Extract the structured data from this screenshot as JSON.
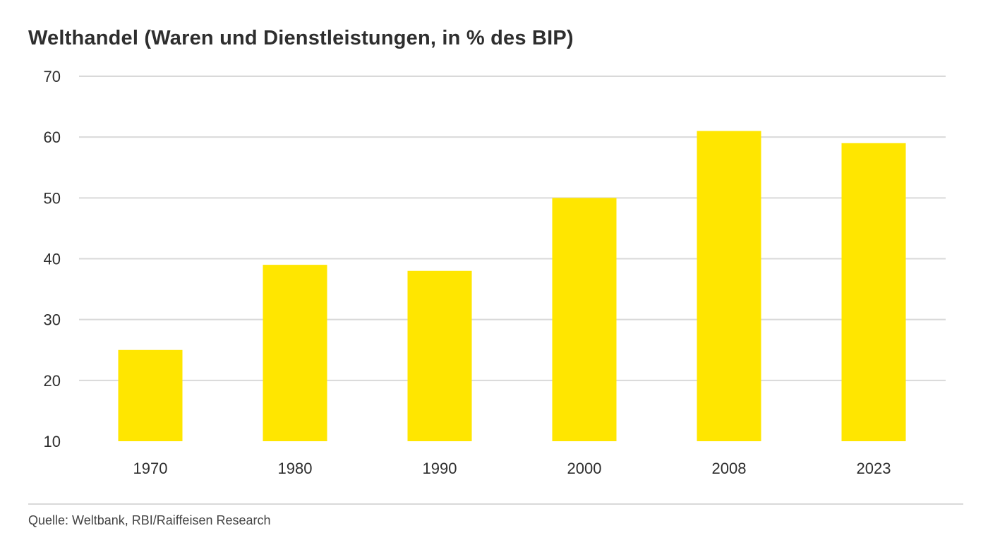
{
  "chart_data": {
    "type": "bar",
    "title": "Welthandel (Waren und Dienstleistungen, in % des BIP)",
    "categories": [
      "1970",
      "1980",
      "1990",
      "2000",
      "2008",
      "2023"
    ],
    "values": [
      25,
      39,
      38,
      50,
      61,
      59
    ],
    "yticks": [
      "10",
      "20",
      "30",
      "40",
      "50",
      "60",
      "70"
    ],
    "ylim": [
      10,
      70
    ],
    "xlabel": "",
    "ylabel": "",
    "grid": true,
    "legend": "none",
    "bar_color": "#FFE600",
    "grid_color": "#d9d9d9",
    "source": "Quelle: Weltbank, RBI/Raiffeisen Research"
  }
}
